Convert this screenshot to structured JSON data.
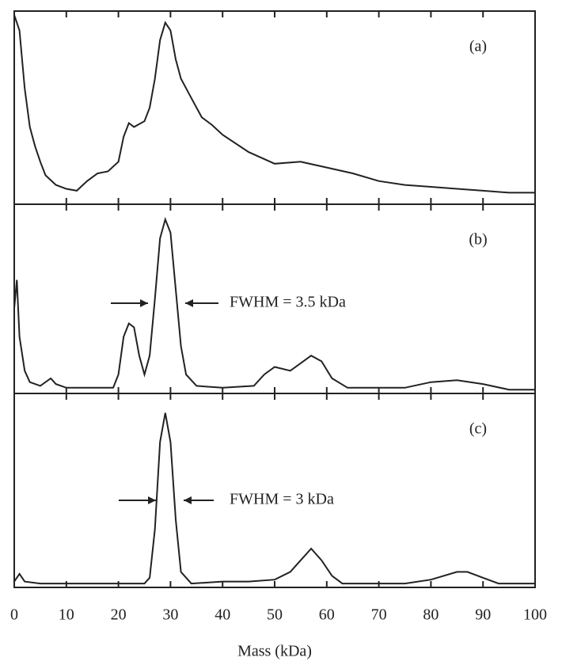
{
  "chart_data": [
    {
      "type": "line",
      "label": "(a)",
      "color": "#222222",
      "xlim": [
        0,
        100
      ],
      "ylim": [
        0,
        1
      ],
      "xticks": [
        0,
        10,
        20,
        30,
        40,
        50,
        60,
        70,
        80,
        90,
        100
      ],
      "x": [
        0,
        1,
        2,
        3,
        4,
        5,
        6,
        8,
        10,
        12,
        14,
        16,
        18,
        20,
        21,
        22,
        23,
        25,
        26,
        27,
        28,
        29,
        30,
        31,
        32,
        34,
        36,
        38,
        40,
        45,
        50,
        55,
        60,
        65,
        70,
        75,
        80,
        85,
        90,
        95,
        100
      ],
      "values": [
        0.98,
        0.9,
        0.6,
        0.4,
        0.3,
        0.22,
        0.15,
        0.1,
        0.08,
        0.07,
        0.12,
        0.16,
        0.17,
        0.22,
        0.35,
        0.42,
        0.4,
        0.43,
        0.5,
        0.65,
        0.85,
        0.94,
        0.9,
        0.75,
        0.65,
        0.55,
        0.45,
        0.41,
        0.36,
        0.27,
        0.21,
        0.22,
        0.19,
        0.16,
        0.12,
        0.1,
        0.09,
        0.08,
        0.07,
        0.06,
        0.06
      ]
    },
    {
      "type": "line",
      "label": "(b)",
      "color": "#222222",
      "xlim": [
        0,
        100
      ],
      "ylim": [
        0,
        1
      ],
      "xticks": [
        0,
        10,
        20,
        30,
        40,
        50,
        60,
        70,
        80,
        90,
        100
      ],
      "annotation": "FWHM = 3.5 kDa",
      "x": [
        0,
        0.5,
        1,
        2,
        3,
        5,
        7,
        8,
        10,
        15,
        19,
        20,
        21,
        22,
        23,
        24,
        25,
        26,
        27,
        28,
        29,
        30,
        31,
        32,
        33,
        35,
        40,
        46,
        48,
        50,
        53,
        55,
        57,
        59,
        61,
        64,
        70,
        75,
        80,
        85,
        90,
        95,
        100
      ],
      "values": [
        0.45,
        0.6,
        0.3,
        0.12,
        0.06,
        0.04,
        0.08,
        0.05,
        0.03,
        0.03,
        0.03,
        0.1,
        0.3,
        0.37,
        0.35,
        0.2,
        0.1,
        0.2,
        0.5,
        0.82,
        0.92,
        0.85,
        0.55,
        0.25,
        0.1,
        0.04,
        0.03,
        0.04,
        0.1,
        0.14,
        0.12,
        0.16,
        0.2,
        0.17,
        0.08,
        0.03,
        0.03,
        0.03,
        0.06,
        0.07,
        0.05,
        0.02,
        0.02
      ]
    },
    {
      "type": "line",
      "label": "(c)",
      "color": "#222222",
      "xlim": [
        0,
        100
      ],
      "ylim": [
        0,
        1
      ],
      "xticks": [
        0,
        10,
        20,
        30,
        40,
        50,
        60,
        70,
        80,
        90,
        100
      ],
      "annotation": "FWHM = 3 kDa",
      "xlabel": "Mass (kDa)",
      "x": [
        0,
        1,
        2,
        5,
        20,
        25,
        26,
        27,
        28,
        29,
        30,
        31,
        32,
        34,
        40,
        45,
        50,
        53,
        55,
        57,
        59,
        61,
        63,
        75,
        80,
        85,
        87,
        90,
        93,
        100
      ],
      "values": [
        0.03,
        0.07,
        0.03,
        0.02,
        0.02,
        0.02,
        0.05,
        0.3,
        0.75,
        0.9,
        0.75,
        0.35,
        0.08,
        0.02,
        0.03,
        0.03,
        0.04,
        0.08,
        0.14,
        0.2,
        0.14,
        0.06,
        0.02,
        0.02,
        0.04,
        0.08,
        0.08,
        0.05,
        0.02,
        0.02
      ]
    }
  ]
}
